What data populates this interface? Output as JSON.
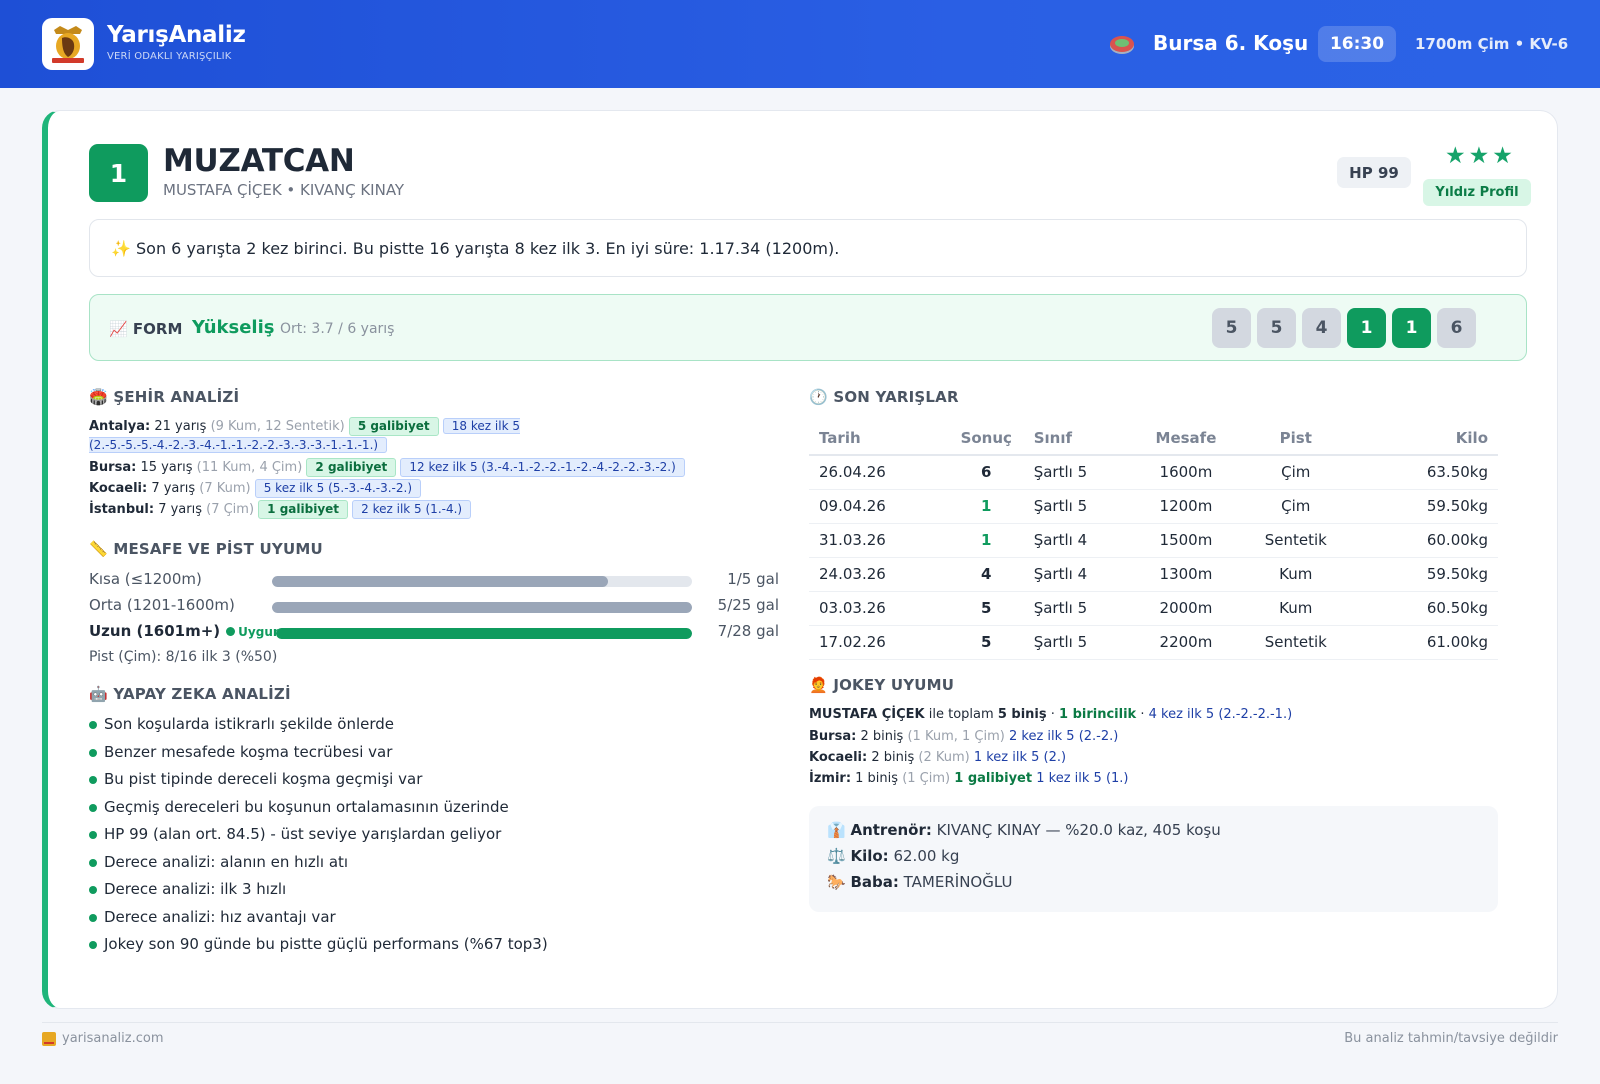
{
  "header": {
    "brand": "YarışAnaliz",
    "tagline": "VERİ ODAKLI YARIŞÇILIK",
    "race_title": "Bursa 6. Koşu",
    "race_time": "16:30",
    "race_info": "1700m Çim • KV-6"
  },
  "horse": {
    "number": "1",
    "name": "MUZATCAN",
    "subtitle": "MUSTAFA ÇİÇEK • KIVANÇ KINAY",
    "hp": "HP 99",
    "stars": "★★★",
    "profile": "Yıldız Profil",
    "summary": "✨ Son 6 yarışta 2 kez birinci. Bu pistte 16 yarışta 8 kez ilk 3. En iyi süre: 1.17.34 (1200m)."
  },
  "form": {
    "label": "FORM",
    "trend": "Yükseliş",
    "avg": "Ort: 3.7 / 6 yarış",
    "results": [
      "5",
      "5",
      "4",
      "1",
      "1",
      "6"
    ]
  },
  "city_analysis": {
    "title": "ŞEHİR ANALİZİ",
    "rows": [
      {
        "city": "Antalya:",
        "races": "21 yarış",
        "detail": "(9 Kum, 12 Sentetik)",
        "wins": "5 galibiyet",
        "top5": "18 kez ilk 5 (2.-5.-5.-5.-4.-2.-3.-4.-1.-1.-2.-2.-3.-3.-3.-1.-1.-1.)"
      },
      {
        "city": "Bursa:",
        "races": "15 yarış",
        "detail": "(11 Kum, 4 Çim)",
        "wins": "2 galibiyet",
        "top5": "12 kez ilk 5 (3.-4.-1.-2.-2.-1.-2.-4.-2.-2.-3.-2.)"
      },
      {
        "city": "Kocaeli:",
        "races": "7 yarış",
        "detail": "(7 Kum)",
        "wins": "",
        "top5": "5 kez ilk 5 (5.-3.-4.-3.-2.)"
      },
      {
        "city": "İstanbul:",
        "races": "7 yarış",
        "detail": "(7 Çim)",
        "wins": "1 galibiyet",
        "top5": "2 kez ilk 5 (1.-4.)"
      }
    ]
  },
  "distance": {
    "title": "MESAFE VE PİST UYUMU",
    "rows": [
      {
        "label": "Kısa (≤1200m)",
        "value": "1/5 gal",
        "fill": 0.8,
        "good": false,
        "badge": ""
      },
      {
        "label": "Orta (1201-1600m)",
        "value": "5/25 gal",
        "fill": 1.0,
        "good": false,
        "badge": ""
      },
      {
        "label": "Uzun (1601m+)",
        "value": "7/28 gal",
        "fill": 1.0,
        "good": true,
        "badge": "Uygun"
      }
    ],
    "track_note": "Pist (Çim): 8/16 ilk 3 (%50)"
  },
  "ai": {
    "title": "YAPAY ZEKA ANALİZİ",
    "items": [
      "Son koşularda istikrarlı şekilde önlerde",
      "Benzer mesafede koşma tecrübesi var",
      "Bu pist tipinde dereceli koşma geçmişi var",
      "Geçmiş dereceleri bu koşunun ortalamasının üzerinde",
      "HP 99 (alan ort. 84.5) - üst seviye yarışlardan geliyor",
      "Derece analizi: alanın en hızlı atı",
      "Derece analizi: ilk 3 hızlı",
      "Derece analizi: hız avantajı var",
      "Jokey son 90 günde bu pistte güçlü performans (%67 top3)"
    ]
  },
  "recent": {
    "title": "SON YARIŞLAR",
    "headers": [
      "Tarih",
      "Sonuç",
      "Sınıf",
      "Mesafe",
      "Pist",
      "Kilo"
    ],
    "rows": [
      {
        "date": "26.04.26",
        "result": "6",
        "class": "Şartlı 5",
        "distance": "1600m",
        "track": "Çim",
        "weight": "63.50kg"
      },
      {
        "date": "09.04.26",
        "result": "1",
        "class": "Şartlı 5",
        "distance": "1200m",
        "track": "Çim",
        "weight": "59.50kg"
      },
      {
        "date": "31.03.26",
        "result": "1",
        "class": "Şartlı 4",
        "distance": "1500m",
        "track": "Sentetik",
        "weight": "60.00kg"
      },
      {
        "date": "24.03.26",
        "result": "4",
        "class": "Şartlı 4",
        "distance": "1300m",
        "track": "Kum",
        "weight": "59.50kg"
      },
      {
        "date": "03.03.26",
        "result": "5",
        "class": "Şartlı 5",
        "distance": "2000m",
        "track": "Kum",
        "weight": "60.50kg"
      },
      {
        "date": "17.02.26",
        "result": "5",
        "class": "Şartlı 5",
        "distance": "2200m",
        "track": "Sentetik",
        "weight": "61.00kg"
      }
    ]
  },
  "jockey": {
    "title": "JOKEY UYUMU",
    "summary": {
      "name": "MUSTAFA ÇİÇEK",
      "text1": "ile toplam",
      "rides": "5 biniş",
      "wins": "1 birincilik",
      "top5": "4 kez ilk 5 (2.-2.-2.-1.)"
    },
    "rows": [
      {
        "city": "Bursa:",
        "rides": "2 biniş",
        "detail": "(1 Kum, 1 Çim)",
        "wins": "",
        "top5": "2 kez ilk 5 (2.-2.)"
      },
      {
        "city": "Kocaeli:",
        "rides": "2 biniş",
        "detail": "(2 Kum)",
        "wins": "",
        "top5": "1 kez ilk 5 (2.)"
      },
      {
        "city": "İzmir:",
        "rides": "1 biniş",
        "detail": "(1 Çim)",
        "wins": "1 galibiyet",
        "top5": "1 kez ilk 5 (1.)"
      }
    ]
  },
  "trainer": {
    "trainer_label": "Antrenör:",
    "trainer_value": "KIVANÇ KINAY — %20.0 kaz, 405 koşu",
    "weight_label": "Kilo:",
    "weight_value": "62.00 kg",
    "sire_label": "Baba:",
    "sire_value": "TAMERİNOĞLU"
  },
  "footer": {
    "site": "yarisanaliz.com",
    "disclaimer": "Bu analiz tahmin/tavsiye değildir"
  },
  "colors": {
    "accent_green": "#0f9b5e",
    "header_blue": "#1e4fd6",
    "tag_blue": "#1e3fa6"
  }
}
